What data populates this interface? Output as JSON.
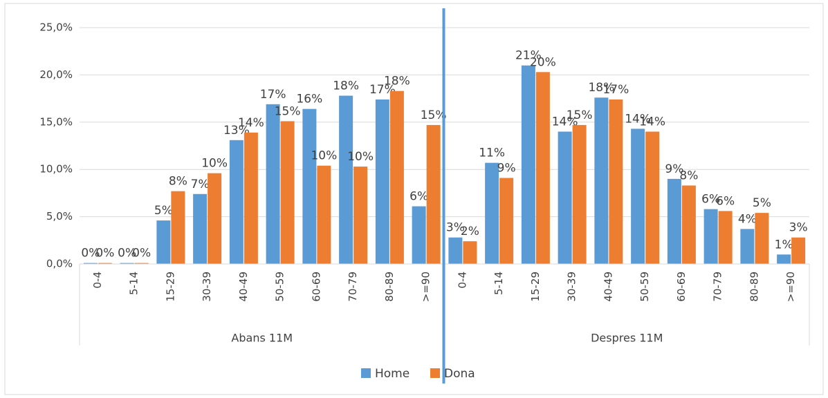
{
  "chart_data": {
    "type": "bar",
    "categories": [
      "0-4",
      "5-14",
      "15-29",
      "30-39",
      "40-49",
      "50-59",
      "60-69",
      "70-79",
      "80-89",
      ">=90",
      "0-4",
      "5-14",
      "15-29",
      "30-39",
      "40-49",
      "50-59",
      "60-69",
      "70-79",
      "80-89",
      ">=90"
    ],
    "category_groups": [
      "Abans 11M",
      "Despres 11M"
    ],
    "series": [
      {
        "name": "Home",
        "color": "#5b9bd5",
        "values": [
          0.1,
          0.1,
          4.6,
          7.4,
          13.1,
          16.9,
          16.4,
          17.8,
          17.4,
          6.1,
          2.8,
          10.7,
          21.0,
          14.0,
          17.6,
          14.3,
          9.0,
          5.8,
          3.7,
          1.0
        ],
        "value_labels": [
          "0%",
          "0%",
          "5%",
          "7%",
          "13%",
          "17%",
          "16%",
          "18%",
          "17%",
          "6%",
          "3%",
          "11%",
          "21%",
          "14%",
          "18%",
          "14%",
          "9%",
          "6%",
          "4%",
          "1%"
        ]
      },
      {
        "name": "Dona",
        "color": "#ed7d31",
        "values": [
          0.1,
          0.1,
          7.7,
          9.6,
          13.9,
          15.1,
          10.4,
          10.3,
          18.3,
          14.7,
          2.4,
          9.1,
          20.3,
          14.7,
          17.4,
          14.0,
          8.3,
          5.6,
          5.4,
          2.8
        ],
        "value_labels": [
          "0%",
          "0%",
          "8%",
          "10%",
          "14%",
          "15%",
          "10%",
          "10%",
          "18%",
          "15%",
          "2%",
          "9%",
          "20%",
          "15%",
          "17%",
          "14%",
          "8%",
          "6%",
          "5%",
          "3%"
        ]
      }
    ],
    "ylim": [
      0,
      25
    ],
    "yticks": [
      {
        "value": 0,
        "label": "0,0%"
      },
      {
        "value": 5,
        "label": "5,0%"
      },
      {
        "value": 10,
        "label": "10,0%"
      },
      {
        "value": 15,
        "label": "15,0%"
      },
      {
        "value": 20,
        "label": "20,0%"
      },
      {
        "value": 25,
        "label": "25,0%"
      }
    ],
    "grid": true,
    "legend": "bottom"
  }
}
